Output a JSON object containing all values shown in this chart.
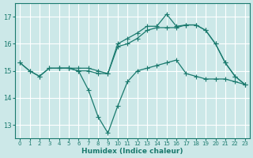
{
  "title": "",
  "xlabel": "Humidex (Indice chaleur)",
  "bg_color": "#cce8e8",
  "grid_color": "#ffffff",
  "line_color": "#1a7a6e",
  "xlim": [
    -0.5,
    23.5
  ],
  "ylim": [
    12.5,
    17.5
  ],
  "yticks": [
    13,
    14,
    15,
    16,
    17
  ],
  "xticks": [
    0,
    1,
    2,
    3,
    4,
    5,
    6,
    7,
    8,
    9,
    10,
    11,
    12,
    13,
    14,
    15,
    16,
    17,
    18,
    19,
    20,
    21,
    22,
    23
  ],
  "curve1_x": [
    0,
    1,
    2,
    3,
    4,
    5,
    6,
    7,
    8,
    9,
    10,
    11,
    12,
    13,
    14,
    15,
    16,
    17,
    18,
    19,
    20,
    21,
    22,
    23
  ],
  "curve1_y": [
    15.3,
    15.0,
    14.8,
    15.1,
    15.1,
    15.1,
    15.0,
    15.0,
    14.9,
    14.9,
    15.9,
    16.0,
    16.2,
    16.5,
    16.6,
    16.6,
    16.6,
    16.7,
    16.7,
    16.5,
    16.0,
    15.3,
    14.8,
    14.5
  ],
  "curve2_x": [
    0,
    1,
    2,
    3,
    4,
    5,
    6,
    7,
    8,
    9,
    10,
    11,
    12,
    13,
    14,
    15,
    16,
    17,
    18,
    19,
    20,
    21,
    22,
    23
  ],
  "curve2_y": [
    15.3,
    15.0,
    14.8,
    15.1,
    15.1,
    15.1,
    15.1,
    15.1,
    15.0,
    14.9,
    16.0,
    16.2,
    16.4,
    16.65,
    16.65,
    17.1,
    16.65,
    16.7,
    16.7,
    16.5,
    16.0,
    15.3,
    14.8,
    14.5
  ],
  "curve3_x": [
    4,
    5,
    6,
    7,
    8,
    9,
    10,
    11,
    12,
    13,
    14,
    15,
    16,
    17,
    18,
    19,
    20,
    21,
    22,
    23
  ],
  "curve3_y": [
    15.1,
    15.1,
    15.0,
    14.3,
    13.3,
    12.7,
    13.7,
    14.6,
    15.0,
    15.1,
    15.2,
    15.3,
    15.4,
    14.9,
    14.8,
    14.7,
    14.7,
    14.7,
    14.6,
    14.5
  ]
}
